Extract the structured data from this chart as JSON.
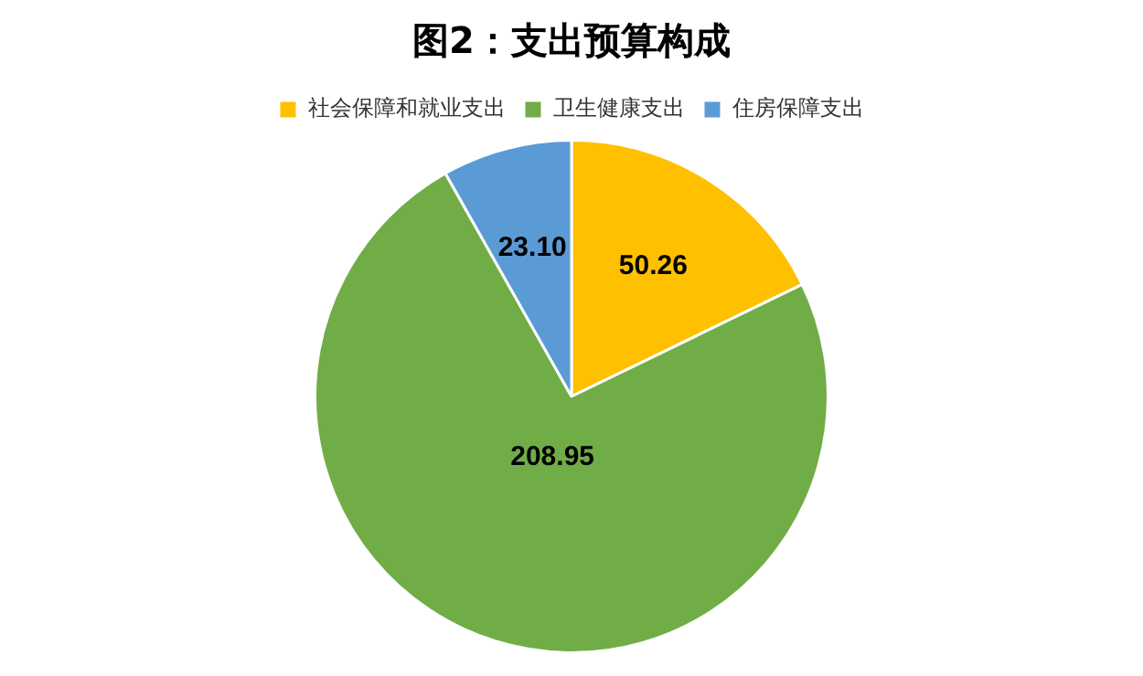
{
  "chart_data": {
    "type": "pie",
    "title": "图2：支出预算构成",
    "categories": [
      "社会保障和就业支出",
      "卫生健康支出",
      "住房保障支出"
    ],
    "values": [
      50.26,
      208.95,
      23.1
    ],
    "colors": [
      "#ffc000",
      "#70ad47",
      "#5b9bd5"
    ],
    "value_labels": [
      "50.26",
      "208.95",
      "23.10"
    ],
    "legend": "top"
  }
}
